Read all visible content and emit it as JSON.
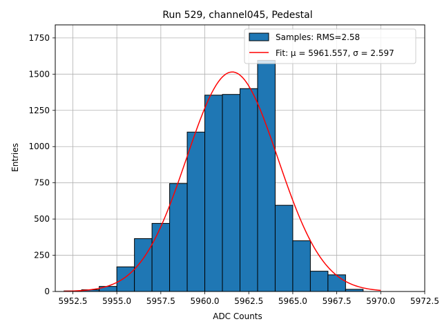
{
  "chart_data": {
    "type": "histogram",
    "title": "Run 529, channel045, Pedestal",
    "xlabel": "ADC Counts",
    "ylabel": "Entries",
    "xlim": [
      5951.5,
      5972.5
    ],
    "ylim": [
      0,
      1840
    ],
    "grid": true,
    "legend_position": "top-right",
    "x_ticks": [
      5952.5,
      5955.0,
      5957.5,
      5960.0,
      5962.5,
      5965.0,
      5967.5,
      5970.0,
      5972.5
    ],
    "x_tick_labels": [
      "5952.5",
      "5955.0",
      "5957.5",
      "5960.0",
      "5962.5",
      "5965.0",
      "5967.5",
      "5970.0",
      "5972.5"
    ],
    "y_ticks": [
      0,
      250,
      500,
      750,
      1000,
      1250,
      1500,
      1750
    ],
    "y_tick_labels": [
      "0",
      "250",
      "500",
      "750",
      "1000",
      "1250",
      "1500",
      "1750"
    ],
    "bins": {
      "edges": [
        5952,
        5953,
        5954,
        5955,
        5956,
        5957,
        5958,
        5959,
        5960,
        5961,
        5962,
        5963,
        5964,
        5965,
        5966,
        5967,
        5968,
        5969,
        5970,
        5971,
        5972
      ],
      "counts": [
        4,
        12,
        35,
        170,
        365,
        470,
        745,
        1100,
        1355,
        1360,
        1400,
        1595,
        595,
        350,
        140,
        115,
        15,
        0,
        0,
        0
      ],
      "color": "#1f77b4",
      "edge_color": "#000000"
    },
    "fit": {
      "mu": 5961.557,
      "sigma": 2.597,
      "amplitude": 1515,
      "x_range": [
        5952,
        5970
      ],
      "color": "#ff0000"
    },
    "legend": [
      {
        "label": "Samples: RMS=2.58",
        "kind": "patch",
        "color": "#1f77b4"
      },
      {
        "label": "Fit: μ = 5961.557, σ = 2.597",
        "kind": "line",
        "color": "#ff0000"
      }
    ]
  }
}
